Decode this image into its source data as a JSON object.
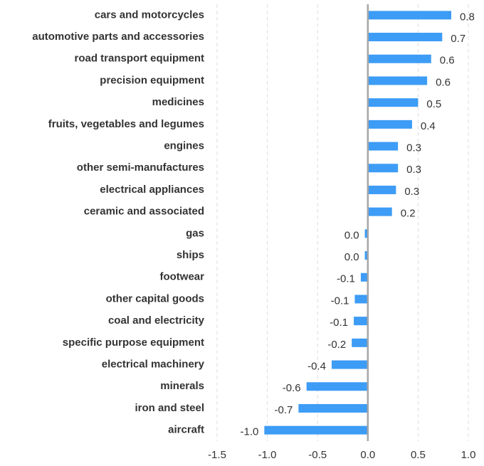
{
  "chart_data": {
    "type": "bar",
    "orientation": "horizontal",
    "color": "#3d9cf5",
    "grid": true,
    "categories": [
      "cars and motorcycles",
      "automotive parts and accessories",
      "road transport equipment",
      "precision equipment",
      "medicines",
      "fruits, vegetables and legumes",
      "engines",
      "other semi-manufactures",
      "electrical appliances",
      "ceramic and associated",
      "gas",
      "ships",
      "footwear",
      "other capital goods",
      "coal and electricity",
      "specific purpose equipment",
      "electrical machinery",
      "minerals",
      "iron and steel",
      "aircraft"
    ],
    "values": [
      0.83,
      0.74,
      0.63,
      0.59,
      0.5,
      0.44,
      0.3,
      0.3,
      0.28,
      0.24,
      -0.03,
      -0.03,
      -0.07,
      -0.13,
      -0.14,
      -0.16,
      -0.36,
      -0.61,
      -0.69,
      -1.03
    ],
    "value_labels": [
      "0.8",
      "0.7",
      "0.6",
      "0.6",
      "0.5",
      "0.4",
      "0.3",
      "0.3",
      "0.3",
      "0.2",
      "0.0",
      "0.0",
      "-0.1",
      "-0.1",
      "-0.1",
      "-0.2",
      "-0.4",
      "-0.6",
      "-0.7",
      "-1.0"
    ],
    "xlim": [
      -1.5,
      1.0
    ],
    "xticks": [
      -1.5,
      {
        "value": -1,
        "label": "-1.0"
      },
      -0.5,
      {
        "value": 0,
        "label": "0.0"
      },
      0.5,
      {
        "value": 1,
        "label": "1.0"
      }
    ]
  }
}
